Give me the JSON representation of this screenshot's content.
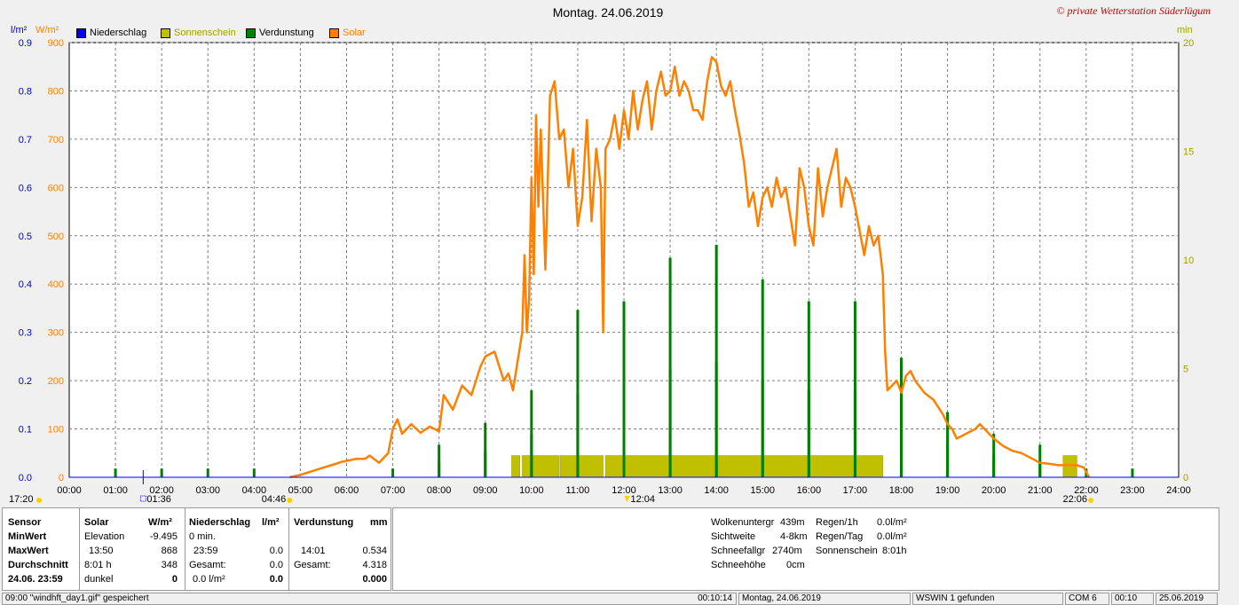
{
  "title": "Montag. 24.06.2019",
  "copyright": "© private Wetterstation Süderlügum",
  "axis_units": {
    "left1": "l/m²",
    "left2": "W/m²",
    "right": "min"
  },
  "legend": [
    {
      "label": "Niederschlag",
      "color": "#0000ff"
    },
    {
      "label": "Sonnenschein",
      "color": "#c0c000"
    },
    {
      "label": "Verdunstung",
      "color": "#008000"
    },
    {
      "label": "Solar",
      "color": "#ff8000"
    }
  ],
  "markers": {
    "sunrise_time": "04:46",
    "sunset_time": "22:06",
    "left_time": "17:20",
    "min_time": "01:36",
    "max_time": "12:04"
  },
  "chart_data": {
    "type": "line",
    "x_ticks": [
      "00:00",
      "01:00",
      "02:00",
      "03:00",
      "04:00",
      "05:00",
      "06:00",
      "07:00",
      "08:00",
      "09:00",
      "10:00",
      "11:00",
      "12:00",
      "13:00",
      "14:00",
      "15:00",
      "16:00",
      "17:00",
      "18:00",
      "19:00",
      "20:00",
      "21:00",
      "22:00",
      "23:00",
      "24:00"
    ],
    "y_left1_ticks": [
      "0.0",
      "0.1",
      "0.2",
      "0.3",
      "0.4",
      "0.5",
      "0.6",
      "0.7",
      "0.8",
      "0.9"
    ],
    "y_left2_ticks": [
      "0",
      "100",
      "200",
      "300",
      "400",
      "500",
      "600",
      "700",
      "800",
      "900"
    ],
    "y_right_ticks": [
      "0",
      "5",
      "10",
      "15",
      "20"
    ],
    "xlim": [
      0,
      24
    ],
    "ylim_solar": [
      0,
      900
    ],
    "ylim_min": [
      0,
      20
    ],
    "grid": true,
    "solar": {
      "name": "Solar",
      "color": "#ff8000",
      "points": [
        [
          4.77,
          0
        ],
        [
          5.0,
          5
        ],
        [
          5.5,
          20
        ],
        [
          5.9,
          32
        ],
        [
          6.2,
          38
        ],
        [
          6.4,
          38
        ],
        [
          6.5,
          45
        ],
        [
          6.7,
          30
        ],
        [
          6.9,
          50
        ],
        [
          7.0,
          100
        ],
        [
          7.1,
          120
        ],
        [
          7.2,
          90
        ],
        [
          7.4,
          110
        ],
        [
          7.6,
          92
        ],
        [
          7.8,
          105
        ],
        [
          8.0,
          95
        ],
        [
          8.1,
          170
        ],
        [
          8.3,
          140
        ],
        [
          8.5,
          190
        ],
        [
          8.7,
          170
        ],
        [
          8.9,
          230
        ],
        [
          9.0,
          250
        ],
        [
          9.2,
          260
        ],
        [
          9.4,
          200
        ],
        [
          9.5,
          215
        ],
        [
          9.6,
          180
        ],
        [
          9.7,
          240
        ],
        [
          9.8,
          300
        ],
        [
          9.85,
          460
        ],
        [
          9.9,
          300
        ],
        [
          9.95,
          370
        ],
        [
          10.0,
          620
        ],
        [
          10.05,
          420
        ],
        [
          10.1,
          750
        ],
        [
          10.15,
          560
        ],
        [
          10.2,
          720
        ],
        [
          10.3,
          430
        ],
        [
          10.4,
          790
        ],
        [
          10.5,
          820
        ],
        [
          10.6,
          700
        ],
        [
          10.7,
          720
        ],
        [
          10.8,
          600
        ],
        [
          10.9,
          680
        ],
        [
          11.0,
          520
        ],
        [
          11.1,
          580
        ],
        [
          11.2,
          740
        ],
        [
          11.3,
          530
        ],
        [
          11.4,
          680
        ],
        [
          11.5,
          600
        ],
        [
          11.55,
          300
        ],
        [
          11.6,
          680
        ],
        [
          11.7,
          700
        ],
        [
          11.8,
          750
        ],
        [
          11.9,
          680
        ],
        [
          12.0,
          760
        ],
        [
          12.1,
          700
        ],
        [
          12.2,
          800
        ],
        [
          12.3,
          720
        ],
        [
          12.4,
          780
        ],
        [
          12.5,
          820
        ],
        [
          12.6,
          720
        ],
        [
          12.7,
          800
        ],
        [
          12.8,
          840
        ],
        [
          12.9,
          790
        ],
        [
          13.0,
          800
        ],
        [
          13.1,
          850
        ],
        [
          13.2,
          790
        ],
        [
          13.3,
          820
        ],
        [
          13.4,
          800
        ],
        [
          13.5,
          760
        ],
        [
          13.6,
          760
        ],
        [
          13.7,
          740
        ],
        [
          13.8,
          820
        ],
        [
          13.9,
          870
        ],
        [
          14.0,
          860
        ],
        [
          14.1,
          810
        ],
        [
          14.2,
          790
        ],
        [
          14.3,
          820
        ],
        [
          14.4,
          760
        ],
        [
          14.5,
          710
        ],
        [
          14.6,
          650
        ],
        [
          14.7,
          560
        ],
        [
          14.8,
          590
        ],
        [
          14.9,
          520
        ],
        [
          15.0,
          580
        ],
        [
          15.1,
          600
        ],
        [
          15.2,
          560
        ],
        [
          15.3,
          620
        ],
        [
          15.4,
          580
        ],
        [
          15.5,
          600
        ],
        [
          15.6,
          540
        ],
        [
          15.7,
          480
        ],
        [
          15.8,
          640
        ],
        [
          15.9,
          600
        ],
        [
          16.0,
          520
        ],
        [
          16.1,
          480
        ],
        [
          16.2,
          640
        ],
        [
          16.3,
          540
        ],
        [
          16.4,
          600
        ],
        [
          16.5,
          640
        ],
        [
          16.6,
          680
        ],
        [
          16.7,
          560
        ],
        [
          16.8,
          620
        ],
        [
          16.9,
          600
        ],
        [
          17.0,
          560
        ],
        [
          17.1,
          510
        ],
        [
          17.2,
          460
        ],
        [
          17.3,
          520
        ],
        [
          17.4,
          480
        ],
        [
          17.5,
          500
        ],
        [
          17.6,
          420
        ],
        [
          17.65,
          260
        ],
        [
          17.7,
          180
        ],
        [
          17.8,
          190
        ],
        [
          17.9,
          200
        ],
        [
          18.0,
          175
        ],
        [
          18.1,
          210
        ],
        [
          18.2,
          220
        ],
        [
          18.3,
          200
        ],
        [
          18.5,
          175
        ],
        [
          18.7,
          160
        ],
        [
          18.9,
          130
        ],
        [
          19.0,
          110
        ],
        [
          19.1,
          100
        ],
        [
          19.2,
          80
        ],
        [
          19.4,
          90
        ],
        [
          19.6,
          100
        ],
        [
          19.7,
          110
        ],
        [
          19.8,
          100
        ],
        [
          19.9,
          90
        ],
        [
          20.0,
          80
        ],
        [
          20.2,
          65
        ],
        [
          20.4,
          55
        ],
        [
          20.6,
          50
        ],
        [
          20.8,
          40
        ],
        [
          21.0,
          30
        ],
        [
          21.2,
          28
        ],
        [
          21.4,
          25
        ],
        [
          21.6,
          25
        ],
        [
          21.8,
          25
        ],
        [
          21.95,
          20
        ],
        [
          22.06,
          0
        ]
      ]
    },
    "sunshine": {
      "name": "Sonnenschein",
      "color": "#c0c000",
      "values_min": [
        0,
        0,
        0,
        0,
        0,
        0,
        0,
        0,
        0,
        0,
        0,
        0,
        0,
        0,
        0,
        0,
        0,
        0,
        0,
        0,
        0,
        0
      ],
      "blocks": [
        [
          9.57,
          9.75,
          1
        ],
        [
          9.8,
          10.6,
          1
        ],
        [
          10.62,
          11.55,
          1
        ],
        [
          11.6,
          17.6,
          1
        ],
        [
          21.5,
          21.8,
          1
        ]
      ]
    },
    "evaporation_bars": {
      "name": "Verdunstung",
      "color": "#008000",
      "bars_min": [
        [
          1.0,
          0.4
        ],
        [
          2.0,
          0.4
        ],
        [
          3.0,
          0.4
        ],
        [
          4.0,
          0.4
        ],
        [
          7.0,
          0.4
        ],
        [
          8.0,
          1.5
        ],
        [
          8.0,
          0.7
        ],
        [
          9.0,
          2.5
        ],
        [
          9.0,
          1.2
        ],
        [
          10.0,
          4.0
        ],
        [
          10.0,
          2.0
        ],
        [
          11.0,
          7.7
        ],
        [
          11.0,
          3.8
        ],
        [
          12.0,
          8.1
        ],
        [
          12.0,
          4.0
        ],
        [
          13.0,
          10.1
        ],
        [
          13.0,
          5.0
        ],
        [
          14.0,
          10.7
        ],
        [
          14.0,
          5.3
        ],
        [
          15.0,
          9.1
        ],
        [
          15.0,
          4.5
        ],
        [
          16.0,
          8.1
        ],
        [
          16.0,
          4.0
        ],
        [
          17.0,
          8.1
        ],
        [
          17.0,
          4.0
        ],
        [
          18.0,
          5.5
        ],
        [
          18.0,
          2.7
        ],
        [
          19.0,
          3.0
        ],
        [
          19.0,
          1.5
        ],
        [
          20.0,
          2.0
        ],
        [
          20.0,
          1.0
        ],
        [
          21.0,
          1.5
        ],
        [
          21.0,
          0.7
        ],
        [
          22.0,
          0.4
        ],
        [
          23.0,
          0.4
        ]
      ]
    }
  },
  "table": {
    "sensor_col": {
      "header": "Sensor",
      "min": "MinWert",
      "max": "MaxWert",
      "avg": "Durchschnitt",
      "date": "24.06. 23:59"
    },
    "solar_col": {
      "header": "Solar",
      "unit": "W/m²",
      "r1a": "Elevation",
      "r1b": "-9.495",
      "r2a": "13:50",
      "r2b": "868",
      "r3a": "8:01 h",
      "r3b": "348",
      "r4a": "dunkel",
      "r4b": "0"
    },
    "rain_col": {
      "header": "Niederschlag",
      "unit": "l/m²",
      "r1a": "0 min.",
      "r2a": "23:59",
      "r2b": "0.0",
      "r3a": "Gesamt:",
      "r3b": "0.0",
      "r4a": "0.0 l/m²",
      "r4b": "0.0"
    },
    "evap_col": {
      "header": "Verdunstung",
      "unit": "mm",
      "r2a": "14:01",
      "r2b": "0.534",
      "r3a": "Gesamt:",
      "r3b": "4.318",
      "r4b": "0.000"
    },
    "extra1": [
      {
        "k": "Wolkenuntergr",
        "v": "439m"
      },
      {
        "k": "Sichtweite",
        "v": "4-8km"
      },
      {
        "k": "Schneefallgr",
        "v": "2740m"
      },
      {
        "k": "Schneehöhe",
        "v": "0cm"
      }
    ],
    "extra2": [
      {
        "k": "Regen/1h",
        "v": "0.0l/m²"
      },
      {
        "k": "Regen/Tag",
        "v": "0.0l/m²"
      },
      {
        "k": "Sonnenschein",
        "v": "8:01h"
      }
    ]
  },
  "statusbar": {
    "s1": "09:00 \"windhft_day1.gif\" gespeichert",
    "s2": "00:10:14",
    "s3": "Montag, 24.06.2019",
    "s4": "WSWIN 1 gefunden",
    "s5": "COM 6",
    "s6": "00:10",
    "s7": "25.06.2019"
  }
}
